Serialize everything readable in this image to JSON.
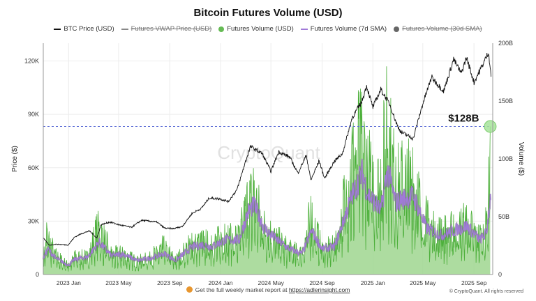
{
  "chart_data": {
    "type": "line",
    "title": "Bitcoin Futures Volume (USD)",
    "watermark": "CryptoQuant",
    "ylabel_left": "Price ($)",
    "ylabel_right": "Volume ($)",
    "ylim_left": [
      0,
      130000
    ],
    "ylim_right": [
      0,
      200
    ],
    "yticks_left": [
      "0",
      "30K",
      "60K",
      "90K",
      "120K"
    ],
    "yticks_right": [
      "0",
      "50B",
      "100B",
      "150B",
      "200B"
    ],
    "xticks": [
      "2023 Jan",
      "2023 May",
      "2023 Sep",
      "2024 Jan",
      "2024 May",
      "2024 Sep",
      "2025 Jan",
      "2025 May",
      "2025 Sep"
    ],
    "xlim": [
      "2022-11-01",
      "2025-10-16"
    ],
    "annotation": {
      "label": "$128B",
      "value_billion": 128,
      "date": "2025-10-10"
    },
    "legend": [
      {
        "name": "BTC Price (USD)",
        "color": "#111111",
        "marker": "line",
        "visible": true
      },
      {
        "name": "Futures VWAP Price (USD)",
        "color": "#888888",
        "marker": "line",
        "visible": false
      },
      {
        "name": "Futures Volume (USD)",
        "color": "#66bb55",
        "marker": "dot",
        "visible": true
      },
      {
        "name": "Futures Volume (7d SMA)",
        "color": "#a07ad8",
        "marker": "line",
        "visible": true
      },
      {
        "name": "Futures Volume (30d SMA)",
        "color": "#666666",
        "marker": "dot",
        "visible": false
      }
    ],
    "series": [
      {
        "name": "BTC Price (USD)",
        "x": [
          "2022-11-01",
          "2022-11-15",
          "2022-12-01",
          "2022-12-31",
          "2023-01-15",
          "2023-02-01",
          "2023-02-20",
          "2023-03-10",
          "2023-03-20",
          "2023-04-10",
          "2023-05-01",
          "2023-06-01",
          "2023-06-25",
          "2023-08-01",
          "2023-08-20",
          "2023-09-10",
          "2023-10-01",
          "2023-10-25",
          "2023-11-15",
          "2023-12-05",
          "2023-12-31",
          "2024-01-20",
          "2024-02-10",
          "2024-02-28",
          "2024-03-13",
          "2024-04-10",
          "2024-05-01",
          "2024-05-20",
          "2024-06-15",
          "2024-07-05",
          "2024-07-25",
          "2024-08-05",
          "2024-08-25",
          "2024-09-07",
          "2024-09-30",
          "2024-10-20",
          "2024-11-12",
          "2024-12-05",
          "2024-12-17",
          "2025-01-01",
          "2025-01-20",
          "2025-02-10",
          "2025-02-28",
          "2025-03-10",
          "2025-04-08",
          "2025-05-01",
          "2025-05-22",
          "2025-06-20",
          "2025-07-14",
          "2025-08-01",
          "2025-08-14",
          "2025-09-01",
          "2025-09-20",
          "2025-10-06",
          "2025-10-12"
        ],
        "values": [
          20500,
          16500,
          17000,
          16600,
          21000,
          23000,
          24500,
          20500,
          28000,
          29500,
          28000,
          26500,
          30500,
          29500,
          26000,
          25800,
          27000,
          34500,
          37000,
          43000,
          42500,
          41000,
          48000,
          62000,
          72000,
          68000,
          58000,
          69000,
          66000,
          57000,
          67000,
          53000,
          64000,
          54000,
          63500,
          68000,
          88000,
          97000,
          106000,
          94000,
          104000,
          96000,
          84000,
          80000,
          76500,
          96000,
          111000,
          103000,
          121000,
          113000,
          122000,
          108000,
          117000,
          125000,
          112000
        ]
      },
      {
        "name": "Futures Volume (USD)",
        "unit": "billion USD",
        "x": [
          "2022-11-01",
          "2022-11-09",
          "2022-12-01",
          "2023-01-01",
          "2023-01-15",
          "2023-02-15",
          "2023-03-13",
          "2023-04-15",
          "2023-05-10",
          "2023-06-15",
          "2023-07-15",
          "2023-08-17",
          "2023-09-15",
          "2023-10-24",
          "2023-11-20",
          "2023-12-10",
          "2024-01-11",
          "2024-02-15",
          "2024-03-05",
          "2024-03-20",
          "2024-04-15",
          "2024-05-15",
          "2024-06-15",
          "2024-07-15",
          "2024-08-05",
          "2024-09-01",
          "2024-10-01",
          "2024-11-12",
          "2024-12-05",
          "2024-12-20",
          "2025-01-20",
          "2025-02-03",
          "2025-02-25",
          "2025-03-10",
          "2025-04-07",
          "2025-05-10",
          "2025-06-15",
          "2025-07-14",
          "2025-08-14",
          "2025-09-15",
          "2025-10-01",
          "2025-10-10"
        ],
        "values": [
          16,
          45,
          22,
          10,
          20,
          20,
          55,
          22,
          24,
          15,
          20,
          32,
          16,
          36,
          38,
          34,
          44,
          42,
          80,
          92,
          55,
          40,
          28,
          24,
          68,
          28,
          32,
          128,
          158,
          120,
          100,
          180,
          102,
          110,
          110,
          62,
          48,
          52,
          60,
          42,
          55,
          128
        ]
      },
      {
        "name": "Futures Volume (7d SMA)",
        "unit": "billion USD",
        "x": [
          "2022-11-01",
          "2022-11-12",
          "2022-12-01",
          "2023-01-01",
          "2023-01-15",
          "2023-02-15",
          "2023-03-15",
          "2023-04-15",
          "2023-05-10",
          "2023-06-15",
          "2023-07-15",
          "2023-08-20",
          "2023-09-15",
          "2023-10-25",
          "2023-11-20",
          "2023-12-10",
          "2024-01-12",
          "2024-02-15",
          "2024-03-08",
          "2024-03-22",
          "2024-04-15",
          "2024-05-15",
          "2024-06-15",
          "2024-07-15",
          "2024-08-07",
          "2024-09-01",
          "2024-10-01",
          "2024-11-14",
          "2024-12-06",
          "2024-12-20",
          "2025-01-20",
          "2025-02-05",
          "2025-02-25",
          "2025-03-10",
          "2025-04-08",
          "2025-05-10",
          "2025-06-15",
          "2025-07-15",
          "2025-08-15",
          "2025-09-15",
          "2025-10-01",
          "2025-10-12"
        ],
        "values": [
          14,
          22,
          14,
          8,
          13,
          15,
          28,
          16,
          18,
          12,
          14,
          18,
          12,
          24,
          26,
          24,
          30,
          30,
          55,
          60,
          40,
          30,
          22,
          18,
          38,
          22,
          24,
          70,
          88,
          70,
          55,
          90,
          62,
          65,
          68,
          40,
          34,
          38,
          42,
          30,
          36,
          72
        ]
      }
    ]
  },
  "footer": {
    "report_text": "Get the full weekly market report at",
    "report_link": "https://adlerinsight.com",
    "copyright": "© CryptoQuant. All rights reserved"
  }
}
